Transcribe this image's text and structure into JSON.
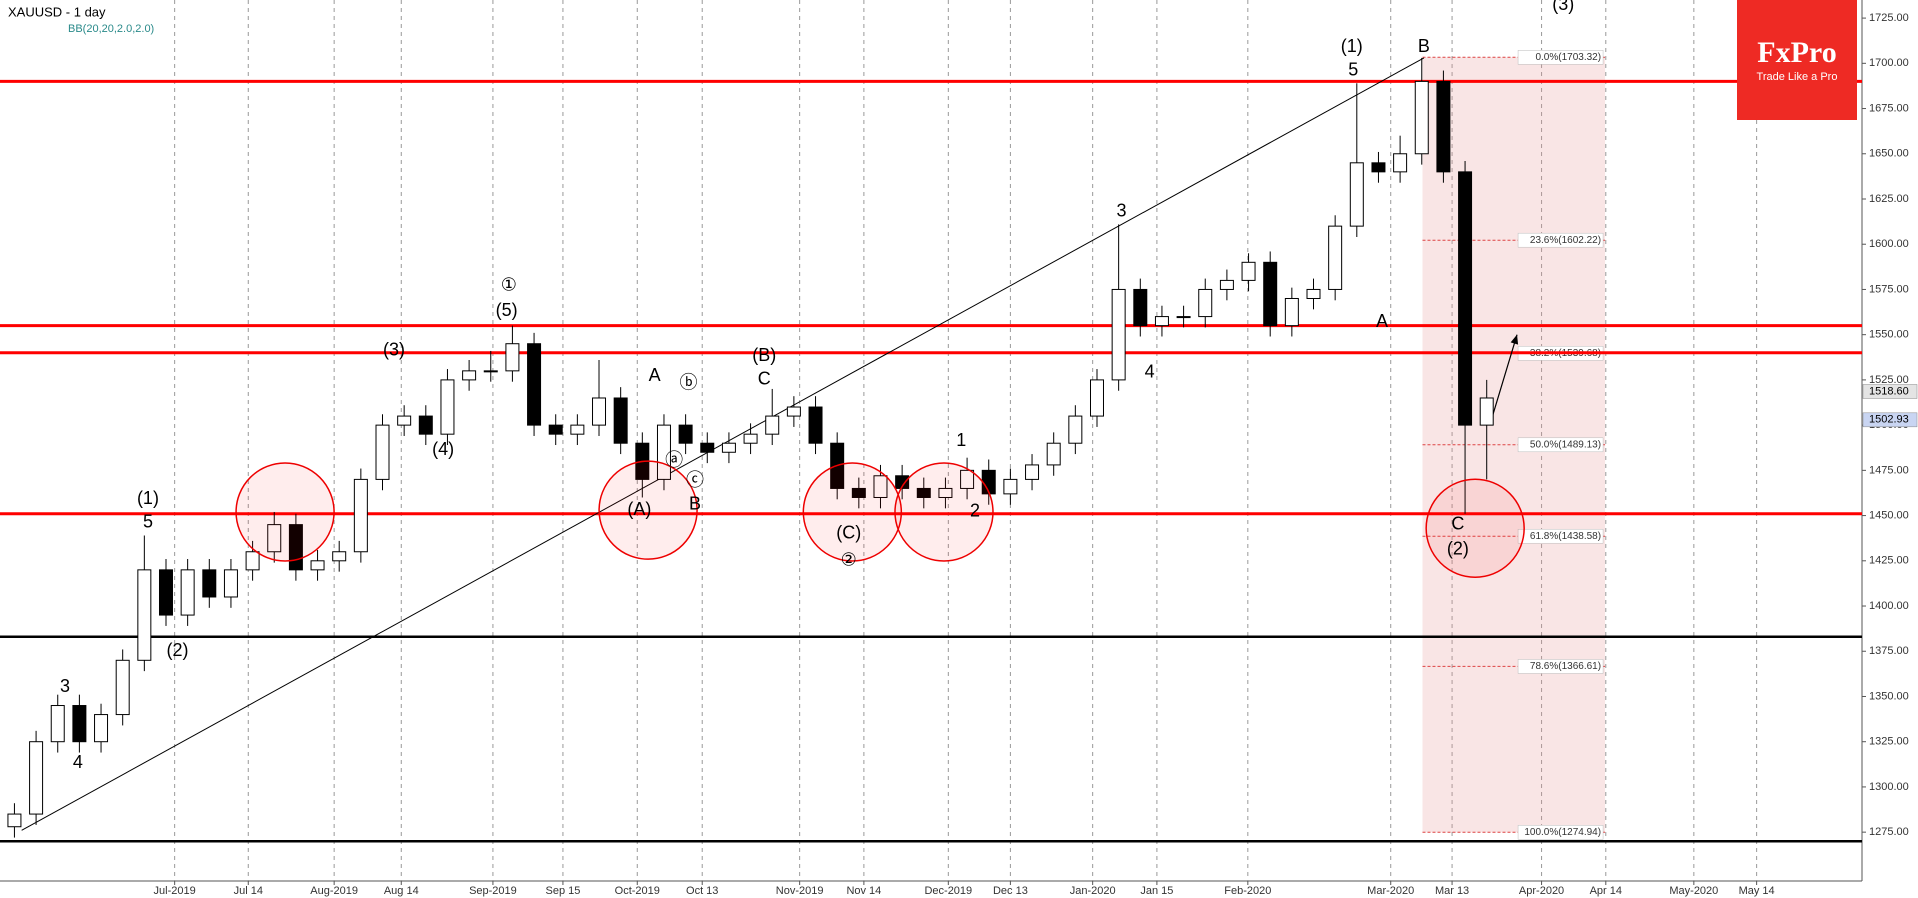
{
  "chart_data": {
    "type": "candlestick",
    "title": "XAUUSD - 1 day",
    "indicator": "BB(20,20,2.0,2.0)",
    "up_color": "#ffffff",
    "down_color": "#000000",
    "x": [
      2,
      5,
      8,
      11,
      14,
      17,
      20,
      23,
      26,
      29,
      32,
      35,
      38,
      41,
      44,
      47,
      50,
      53,
      56,
      59,
      62,
      65,
      68,
      71,
      74,
      77,
      80,
      83,
      86,
      89,
      92,
      95,
      98,
      101,
      104,
      107,
      110,
      113,
      116,
      119,
      122,
      125,
      128,
      131,
      134,
      137,
      140,
      143,
      146,
      149,
      152,
      155,
      158,
      161,
      164,
      167,
      170,
      173,
      176,
      179,
      182,
      185,
      188,
      191,
      194,
      197,
      200,
      203,
      206
    ],
    "open": [
      1278,
      1285,
      1325,
      1345,
      1325,
      1340,
      1370,
      1420,
      1395,
      1420,
      1405,
      1420,
      1430,
      1445,
      1420,
      1425,
      1430,
      1470,
      1500,
      1505,
      1495,
      1525,
      1530,
      1530,
      1545,
      1500,
      1495,
      1500,
      1515,
      1490,
      1470,
      1500,
      1490,
      1485,
      1490,
      1495,
      1505,
      1510,
      1490,
      1465,
      1460,
      1472,
      1465,
      1460,
      1465,
      1475,
      1462,
      1470,
      1478,
      1490,
      1505,
      1525,
      1575,
      1555,
      1560,
      1560,
      1575,
      1580,
      1590,
      1555,
      1570,
      1575,
      1610,
      1645,
      1640,
      1650,
      1690,
      1640,
      1500
    ],
    "high": [
      1291,
      1331,
      1351,
      1351,
      1346,
      1376,
      1439,
      1426,
      1426,
      1426,
      1426,
      1436,
      1452,
      1451,
      1431,
      1436,
      1476,
      1506,
      1511,
      1511,
      1531,
      1536,
      1541,
      1555,
      1551,
      1506,
      1506,
      1536,
      1521,
      1496,
      1506,
      1506,
      1496,
      1496,
      1501,
      1520,
      1516,
      1516,
      1496,
      1471,
      1478,
      1478,
      1471,
      1471,
      1482,
      1481,
      1476,
      1484,
      1496,
      1511,
      1531,
      1611,
      1581,
      1566,
      1566,
      1581,
      1586,
      1595,
      1596,
      1576,
      1581,
      1616,
      1689,
      1651,
      1660,
      1703,
      1696,
      1646,
      1525
    ],
    "low": [
      1272,
      1279,
      1319,
      1319,
      1319,
      1334,
      1364,
      1389,
      1389,
      1399,
      1399,
      1414,
      1424,
      1414,
      1414,
      1419,
      1424,
      1464,
      1494,
      1489,
      1489,
      1519,
      1524,
      1524,
      1494,
      1489,
      1489,
      1494,
      1484,
      1460,
      1464,
      1484,
      1479,
      1479,
      1484,
      1489,
      1499,
      1484,
      1459,
      1454,
      1454,
      1459,
      1454,
      1454,
      1459,
      1456,
      1456,
      1464,
      1472,
      1484,
      1499,
      1519,
      1549,
      1549,
      1554,
      1554,
      1569,
      1574,
      1549,
      1549,
      1564,
      1569,
      1604,
      1634,
      1634,
      1644,
      1634,
      1451,
      1470
    ],
    "close": [
      1285,
      1325,
      1345,
      1325,
      1340,
      1370,
      1420,
      1395,
      1420,
      1405,
      1420,
      1430,
      1445,
      1420,
      1425,
      1430,
      1470,
      1500,
      1505,
      1495,
      1525,
      1530,
      1530,
      1545,
      1500,
      1495,
      1500,
      1515,
      1490,
      1470,
      1500,
      1490,
      1485,
      1490,
      1495,
      1505,
      1510,
      1490,
      1465,
      1460,
      1472,
      1465,
      1460,
      1465,
      1475,
      1462,
      1470,
      1478,
      1490,
      1505,
      1525,
      1575,
      1555,
      1560,
      1560,
      1575,
      1580,
      1590,
      1555,
      1570,
      1575,
      1610,
      1645,
      1640,
      1650,
      1690,
      1640,
      1500,
      1515
    ],
    "xlim": [
      0,
      258
    ],
    "xticks": [
      {
        "value": 24.2,
        "label": "Jul-2019"
      },
      {
        "value": 34.4,
        "label": "Jul 14"
      },
      {
        "value": 46.3,
        "label": "Aug-2019"
      },
      {
        "value": 55.6,
        "label": "Aug 14"
      },
      {
        "value": 68.3,
        "label": "Sep-2019"
      },
      {
        "value": 78,
        "label": "Sep 15"
      },
      {
        "value": 88.3,
        "label": "Oct-2019"
      },
      {
        "value": 97.3,
        "label": "Oct 13"
      },
      {
        "value": 110.8,
        "label": "Nov-2019"
      },
      {
        "value": 119.7,
        "label": "Nov 14"
      },
      {
        "value": 131.4,
        "label": "Dec-2019"
      },
      {
        "value": 140,
        "label": "Dec 13"
      },
      {
        "value": 151.4,
        "label": "Jan-2020"
      },
      {
        "value": 160.3,
        "label": "Jan 15"
      },
      {
        "value": 172.9,
        "label": "Feb-2020"
      },
      {
        "value": 192.7,
        "label": "Mar-2020"
      },
      {
        "value": 201.2,
        "label": "Mar 13"
      },
      {
        "value": 213.6,
        "label": "Apr-2020"
      },
      {
        "value": 222.5,
        "label": "Apr 14"
      },
      {
        "value": 234.7,
        "label": "May-2020"
      },
      {
        "value": 243.4,
        "label": "May 14"
      }
    ],
    "ylim": [
      1248,
      1735
    ],
    "yticks": [
      {
        "value": 1275,
        "label": "1275.00"
      },
      {
        "value": 1300,
        "label": "1300.00"
      },
      {
        "value": 1325,
        "label": "1325.00"
      },
      {
        "value": 1350,
        "label": "1350.00"
      },
      {
        "value": 1375,
        "label": "1375.00"
      },
      {
        "value": 1400,
        "label": "1400.00"
      },
      {
        "value": 1425,
        "label": "1425.00"
      },
      {
        "value": 1450,
        "label": "1450.00"
      },
      {
        "value": 1475,
        "label": "1475.00"
      },
      {
        "value": 1500,
        "label": "1500.00"
      },
      {
        "value": 1525,
        "label": "1525.00"
      },
      {
        "value": 1550,
        "label": "1550.00"
      },
      {
        "value": 1575,
        "label": "1575.00"
      },
      {
        "value": 1600,
        "label": "1600.00"
      },
      {
        "value": 1625,
        "label": "1625.00"
      },
      {
        "value": 1650,
        "label": "1650.00"
      },
      {
        "value": 1675,
        "label": "1675.00"
      },
      {
        "value": 1700,
        "label": "1700.00"
      },
      {
        "value": 1725,
        "label": "1725.00"
      }
    ],
    "grid": "x",
    "levels": [
      {
        "value": 1690,
        "color": "#ff0000"
      },
      {
        "value": 1555,
        "color": "#ff0000"
      },
      {
        "value": 1540,
        "color": "#ff0000"
      },
      {
        "value": 1451,
        "color": "#ff0000"
      },
      {
        "value": 1383,
        "color": "#000000"
      },
      {
        "value": 1270,
        "color": "#000000"
      }
    ],
    "fib_zone": {
      "x": [
        197.1,
        222.4
      ]
    },
    "fib_levels": [
      {
        "value": 1703.32,
        "label": "0.0%(1703.32)"
      },
      {
        "value": 1602.22,
        "label": "23.6%(1602.22)"
      },
      {
        "value": 1539.68,
        "label": "38.2%(1539.68)"
      },
      {
        "value": 1489.13,
        "label": "50.0%(1489.13)"
      },
      {
        "value": 1438.58,
        "label": "61.8%(1438.58)"
      },
      {
        "value": 1366.61,
        "label": "78.6%(1366.61)"
      },
      {
        "value": 1274.94,
        "label": "100.0%(1274.94)"
      }
    ],
    "price_tags": [
      {
        "value": 1518.6,
        "label": "1518.60",
        "color": "#e4e4e4"
      },
      {
        "value": 1502.93,
        "label": "1502.93",
        "color": "#c9d5f2"
      }
    ],
    "trendline": {
      "x": [
        3,
        197.3
      ],
      "y": [
        1276,
        1703
      ]
    },
    "arrow": {
      "x": [
        206.8,
        210.2
      ],
      "y": [
        1505,
        1550
      ]
    },
    "circles": [
      {
        "x": 39.5,
        "y": 1452
      },
      {
        "x": 89.8,
        "y": 1453
      },
      {
        "x": 118.1,
        "y": 1452
      },
      {
        "x": 130.8,
        "y": 1452
      },
      {
        "x": 204.4,
        "y": 1443
      }
    ],
    "annotations": [
      {
        "text": "(1)",
        "x": 20.5,
        "y": 1459
      },
      {
        "text": "5",
        "x": 20.5,
        "y": 1446
      },
      {
        "text": "3",
        "x": 9,
        "y": 1355
      },
      {
        "text": "4",
        "x": 10.8,
        "y": 1313
      },
      {
        "text": "(2)",
        "x": 24.6,
        "y": 1375
      },
      {
        "text": "(3)",
        "x": 54.6,
        "y": 1541
      },
      {
        "text": "(4)",
        "x": 61.4,
        "y": 1486
      },
      {
        "text": "①",
        "x": 70.5,
        "y": 1577
      },
      {
        "text": "(5)",
        "x": 70.2,
        "y": 1563
      },
      {
        "text": "A",
        "x": 90.7,
        "y": 1527
      },
      {
        "text": "ⓑ",
        "x": 95.4,
        "y": 1523
      },
      {
        "text": "ⓐ",
        "x": 93.4,
        "y": 1480
      },
      {
        "text": "ⓒ",
        "x": 96.3,
        "y": 1469
      },
      {
        "text": "B",
        "x": 96.3,
        "y": 1456
      },
      {
        "text": "(A)",
        "x": 88.6,
        "y": 1453
      },
      {
        "text": "(B)",
        "x": 105.9,
        "y": 1538
      },
      {
        "text": "C",
        "x": 105.9,
        "y": 1525
      },
      {
        "text": "(C)",
        "x": 117.6,
        "y": 1440
      },
      {
        "text": "②",
        "x": 117.6,
        "y": 1425
      },
      {
        "text": "1",
        "x": 133.2,
        "y": 1491
      },
      {
        "text": "2",
        "x": 135.1,
        "y": 1452
      },
      {
        "text": "3",
        "x": 155.4,
        "y": 1618
      },
      {
        "text": "4",
        "x": 159.3,
        "y": 1529
      },
      {
        "text": "(1)",
        "x": 187.3,
        "y": 1709
      },
      {
        "text": "5",
        "x": 187.5,
        "y": 1696
      },
      {
        "text": "A",
        "x": 191.5,
        "y": 1557
      },
      {
        "text": "B",
        "x": 197.3,
        "y": 1709
      },
      {
        "text": "C",
        "x": 202,
        "y": 1445
      },
      {
        "text": "(2)",
        "x": 202,
        "y": 1431
      },
      {
        "text": "(3)",
        "x": 216.6,
        "y": 1732
      }
    ]
  },
  "logo": {
    "brand": "FxPro",
    "tagline": "Trade Like a Pro"
  }
}
